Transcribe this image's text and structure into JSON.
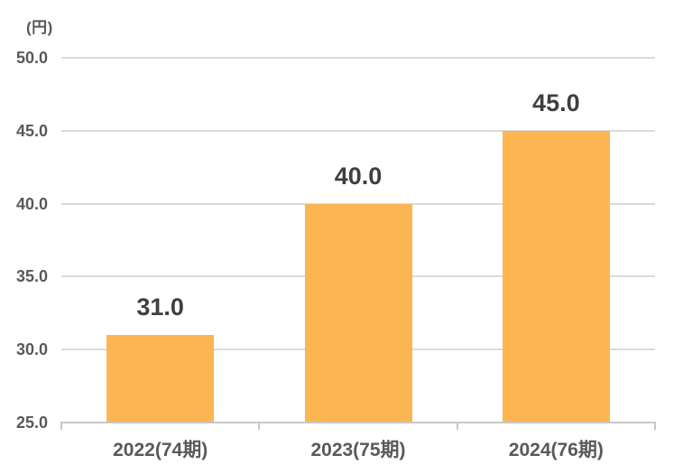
{
  "chart_data": {
    "type": "bar",
    "title": "",
    "unit_label": "(円)",
    "categories": [
      "2022(74期)",
      "2023(75期)",
      "2024(76期)"
    ],
    "values": [
      31.0,
      40.0,
      45.0
    ],
    "value_labels": [
      "31.0",
      "40.0",
      "45.0"
    ],
    "y_ticks": [
      25.0,
      30.0,
      35.0,
      40.0,
      45.0,
      50.0
    ],
    "y_tick_labels": [
      "25.0",
      "30.0",
      "35.0",
      "40.0",
      "45.0",
      "50.0"
    ],
    "ylim": [
      25.0,
      50.0
    ],
    "xlabel": "",
    "ylabel": "(円)",
    "grid": true,
    "legend_position": "none",
    "colors": {
      "bar": "#FBB652",
      "gridline": "#DADADA",
      "axis": "#C9C7C7",
      "tick_text": "#595959",
      "value_text": "#3F3F3F",
      "background": "#FFFFFF"
    }
  }
}
